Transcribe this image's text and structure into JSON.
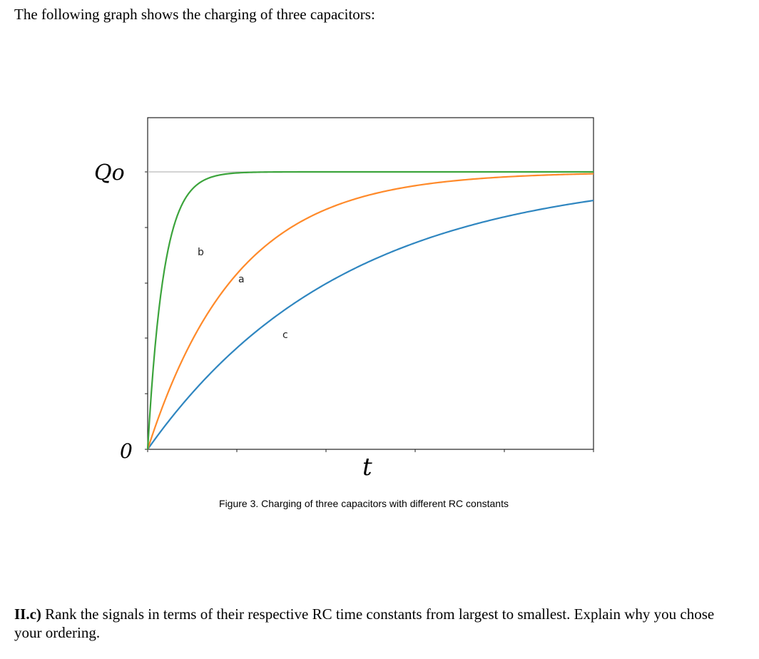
{
  "intro_text": "The following graph shows the charging of three capacitors:",
  "question": {
    "label": "II.c)",
    "text": " Rank the signals in terms of their respective RC time constants from largest to smallest. Explain why you chose your ordering."
  },
  "chart_data": {
    "type": "line",
    "caption": "Figure 3. Charging of three capacitors with different RC constants",
    "handwritten_ylabel_top": "Qo",
    "handwritten_ylabel_bottom": "0",
    "handwritten_xlabel": "t",
    "grid": false,
    "reference_line": "Qo",
    "xlim": [
      0,
      5
    ],
    "ylim": [
      -0.2,
      1.2
    ],
    "series": [
      {
        "name": "b",
        "tau": 0.18,
        "color": "#3ca43c"
      },
      {
        "name": "a",
        "tau": 1.0,
        "color": "#ff8a2a"
      },
      {
        "name": "c",
        "tau": 2.2,
        "color": "#2f86c0"
      }
    ]
  }
}
